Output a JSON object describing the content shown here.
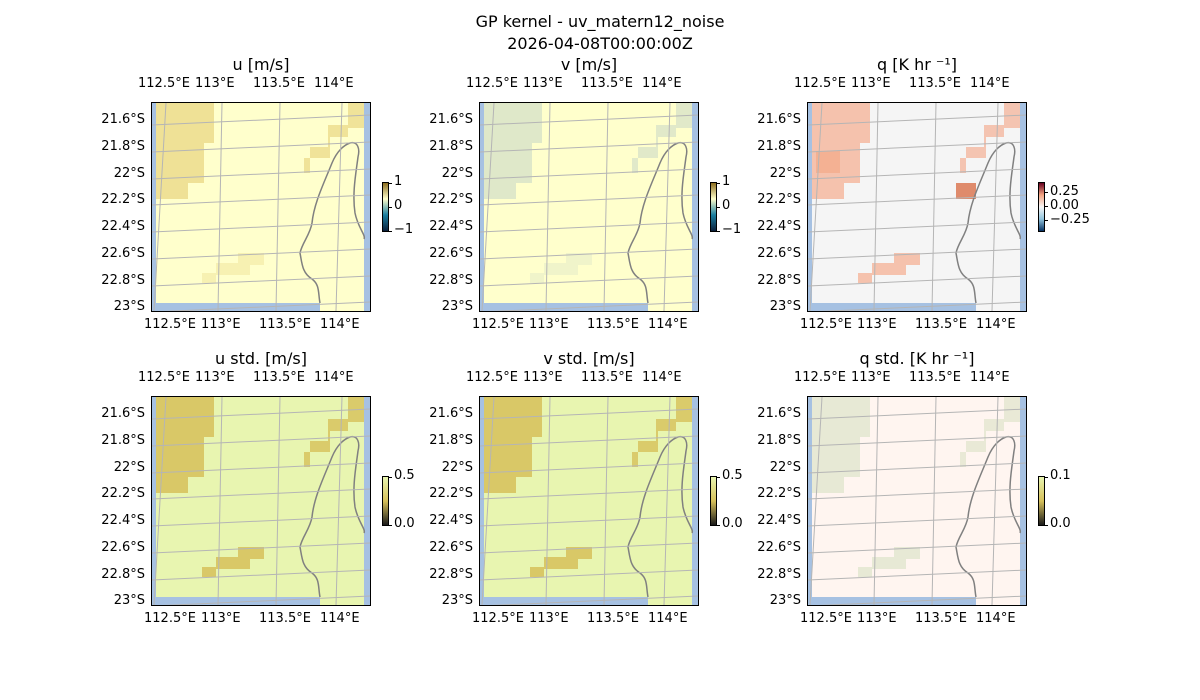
{
  "figure": {
    "title_line1": "GP kernel - uv_matern12_noise",
    "title_line2": "2026-04-08T00:00:00Z"
  },
  "axes": {
    "lon_ticks": [
      "112.5°E",
      "113°E",
      "113.5°E",
      "114°E"
    ],
    "lat_ticks": [
      "21.6°S",
      "21.8°S",
      "22°S",
      "22.2°S",
      "22.4°S",
      "22.6°S",
      "22.8°S",
      "23°S"
    ]
  },
  "panels": [
    {
      "title": "u [m/s]",
      "colorbar": [
        "1",
        "0",
        "−1"
      ],
      "palette": "yellow"
    },
    {
      "title": "v [m/s]",
      "colorbar": [
        "1",
        "0",
        "−1"
      ],
      "palette": "yellow-v"
    },
    {
      "title": "q [K hr ⁻¹]",
      "colorbar": [
        "0.25",
        "0.00",
        "−0.25"
      ],
      "palette": "grey"
    },
    {
      "title": "u std. [m/s]",
      "colorbar": [
        "0.5",
        "0.0"
      ],
      "palette": "green"
    },
    {
      "title": "v std. [m/s]",
      "colorbar": [
        "0.5",
        "0.0"
      ],
      "palette": "green"
    },
    {
      "title": "q std. [K hr ⁻¹]",
      "colorbar": [
        "0.1",
        "0.0"
      ],
      "palette": "pink"
    }
  ],
  "colors": {
    "yellow_bg": "#ffffcc",
    "yellow_patch": "#ecdc8c",
    "green_bg": "#e8f5b0",
    "green_patch": "#d6c05a",
    "grey_bg": "#f5f5f5",
    "red_patch": "#f4b8a0",
    "pink_bg": "#fff5f0",
    "ocean": "#a6c1e2",
    "coast": "#808080"
  }
}
